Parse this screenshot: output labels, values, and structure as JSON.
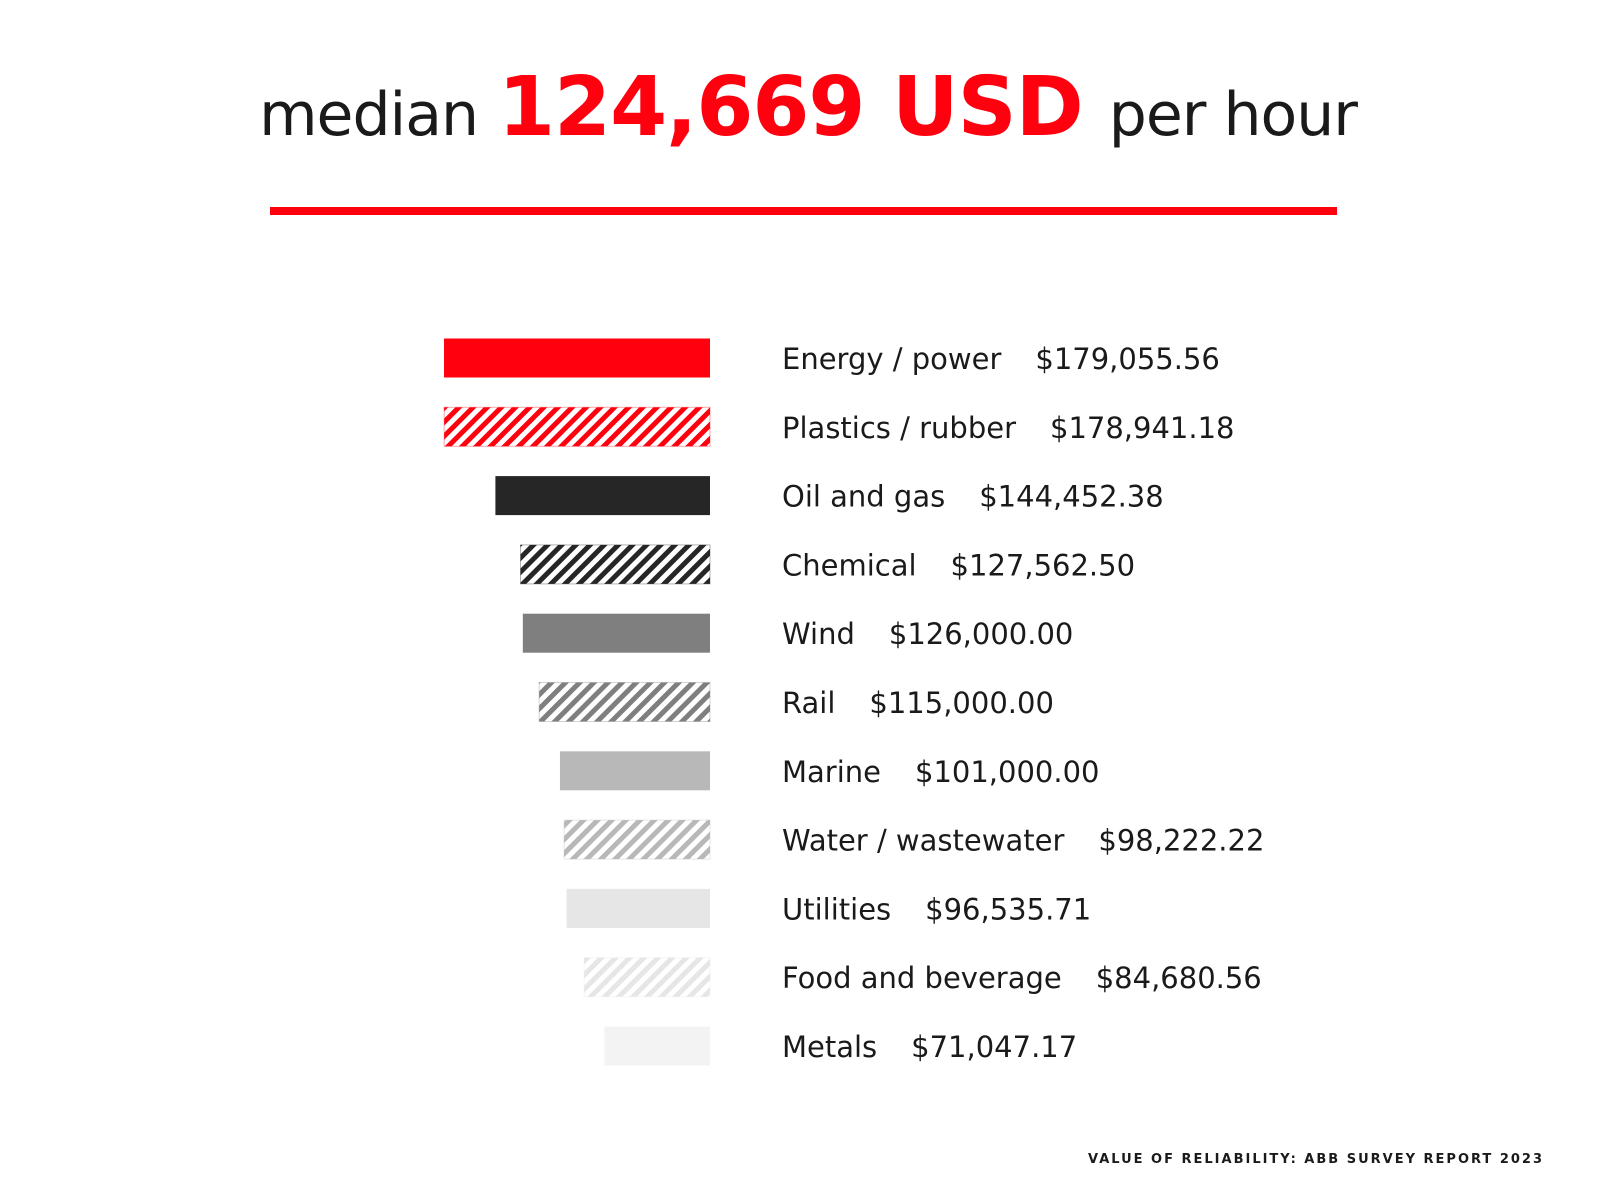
{
  "header": {
    "prefix": "median",
    "value": "124,669 USD",
    "suffix": "per hour"
  },
  "footer": {
    "text": "VALUE OF RELIABILITY: ABB SURVEY REPORT 2023"
  },
  "colors": {
    "accent": "#ff000f",
    "dark": "#262626",
    "mid": "#7f7f7f",
    "light": "#b8b8b8",
    "lighter": "#e6e6e6",
    "lightest": "#f3f3f3"
  },
  "chart_data": {
    "type": "bar",
    "orientation": "horizontal",
    "title": "",
    "xlabel": "",
    "ylabel": "",
    "grid": false,
    "categories": [
      "Energy / power",
      "Plastics / rubber",
      "Oil and gas",
      "Chemical",
      "Wind",
      "Rail",
      "Marine",
      "Water / wastewater",
      "Utilities",
      "Food and beverage",
      "Metals"
    ],
    "values": [
      179055.56,
      178941.18,
      144452.38,
      127562.5,
      126000.0,
      115000.0,
      101000.0,
      98222.22,
      96535.71,
      84680.56,
      71047.17
    ],
    "value_labels": [
      "$179,055.56",
      "$178,941.18",
      "$144,452.38",
      "$127,562.50",
      "$126,000.00",
      "$115,000.00",
      "$101,000.00",
      "$98,222.22",
      "$96,535.71",
      "$84,680.56",
      "$71,047.17"
    ],
    "bar_colors": [
      "#ff000f",
      "#ff000f",
      "#262626",
      "#262626",
      "#7f7f7f",
      "#7f7f7f",
      "#b8b8b8",
      "#b8b8b8",
      "#e6e6e6",
      "#e6e6e6",
      "#f3f3f3"
    ],
    "bar_hatched": [
      false,
      true,
      false,
      true,
      false,
      true,
      false,
      true,
      false,
      true,
      false
    ],
    "bars_grow_from": "right",
    "xlim": [
      0,
      179055.56
    ]
  }
}
